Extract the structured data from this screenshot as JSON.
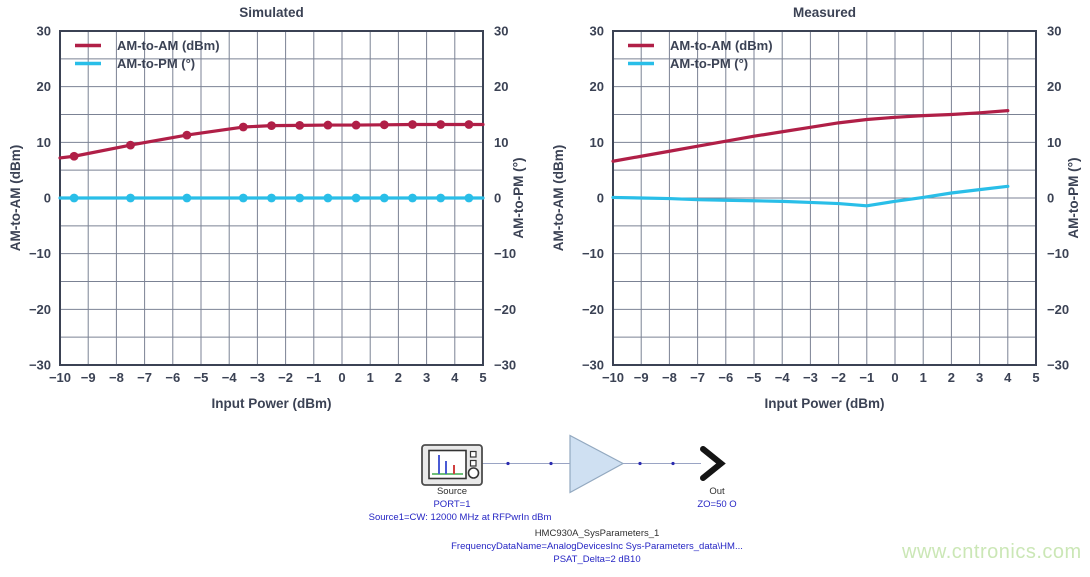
{
  "style": {
    "frame_color": "#3b4254",
    "grid_color": "#7b8294",
    "tick_color": "#3b4254",
    "am_am_color": "#b01f47",
    "am_pm_color": "#29bee8",
    "schematic_blue": "#2525c4",
    "schematic_black": "#2f2f2f",
    "amp_fill": "#cfe0f2",
    "watermark_color": "#cbe7b6"
  },
  "chart_data": [
    {
      "type": "line",
      "title": "Simulated",
      "xlabel": "Input Power (dBm)",
      "ylabel_left": "AM-to-AM (dBm)",
      "ylabel_right": "AM-to-PM (°)",
      "xlim": [
        -10,
        5
      ],
      "ylim": [
        -30,
        30
      ],
      "x_ticks": [
        -10,
        -9,
        -8,
        -7,
        -6,
        -5,
        -4,
        -3,
        -2,
        -1,
        0,
        1,
        2,
        3,
        4,
        5
      ],
      "y_ticks": [
        -30,
        -20,
        -10,
        0,
        10,
        20,
        30
      ],
      "y_grid_step": 5,
      "grid": true,
      "legend_position": "top-left",
      "legend": [
        {
          "label": "AM-to-AM (dBm)",
          "color": "#b01f47"
        },
        {
          "label": "AM-to-PM (°)",
          "color": "#29bee8"
        }
      ],
      "series": [
        {
          "name": "AM-to-AM (dBm)",
          "color": "#b01f47",
          "x": [
            -10,
            -9.5,
            -7.5,
            -5.5,
            -3.5,
            -2.5,
            -1.5,
            -0.5,
            0.5,
            1.5,
            2.5,
            3.5,
            4.5,
            5
          ],
          "y": [
            7.2,
            7.5,
            9.5,
            11.3,
            12.75,
            13.0,
            13.05,
            13.1,
            13.1,
            13.15,
            13.2,
            13.2,
            13.2,
            13.2
          ],
          "marker_x": [
            -9.5,
            -7.5,
            -5.5,
            -3.5,
            -2.5,
            -1.5,
            -0.5,
            0.5,
            1.5,
            2.5,
            3.5,
            4.5
          ],
          "marker_y": [
            7.5,
            9.5,
            11.3,
            12.75,
            13.0,
            13.05,
            13.1,
            13.1,
            13.15,
            13.2,
            13.2,
            13.2
          ]
        },
        {
          "name": "AM-to-PM (°)",
          "color": "#29bee8",
          "x": [
            -10,
            5
          ],
          "y": [
            0,
            0
          ],
          "marker_x": [
            -9.5,
            -7.5,
            -5.5,
            -3.5,
            -2.5,
            -1.5,
            -0.5,
            0.5,
            1.5,
            2.5,
            3.5,
            4.5
          ],
          "marker_y": [
            0,
            0,
            0,
            0,
            0,
            0,
            0,
            0,
            0,
            0,
            0,
            0
          ]
        }
      ]
    },
    {
      "type": "line",
      "title": "Measured",
      "xlabel": "Input Power (dBm)",
      "ylabel_left": "AM-to-AM (dBm)",
      "ylabel_right": "AM-to-PM (°)",
      "xlim": [
        -10,
        5
      ],
      "ylim": [
        -30,
        30
      ],
      "x_ticks": [
        -10,
        -9,
        -8,
        -7,
        -6,
        -5,
        -4,
        -3,
        -2,
        -1,
        0,
        1,
        2,
        3,
        4,
        5
      ],
      "y_ticks": [
        -30,
        -20,
        -10,
        0,
        10,
        20,
        30
      ],
      "y_grid_step": 5,
      "grid": true,
      "legend_position": "top-left",
      "legend": [
        {
          "label": "AM-to-AM (dBm)",
          "color": "#b01f47"
        },
        {
          "label": "AM-to-PM (°)",
          "color": "#29bee8"
        }
      ],
      "series": [
        {
          "name": "AM-to-AM (dBm)",
          "color": "#b01f47",
          "x": [
            -10,
            -9,
            -8,
            -7,
            -6,
            -5,
            -4,
            -3,
            -2,
            -1,
            0,
            1,
            2,
            3,
            4
          ],
          "y": [
            6.6,
            7.5,
            8.4,
            9.3,
            10.2,
            11.1,
            11.9,
            12.7,
            13.5,
            14.1,
            14.5,
            14.8,
            15.0,
            15.3,
            15.7
          ],
          "marker_x": [],
          "marker_y": []
        },
        {
          "name": "AM-to-PM (°)",
          "color": "#29bee8",
          "x": [
            -10,
            -9,
            -8,
            -7,
            -6,
            -5,
            -4,
            -3,
            -2,
            -1,
            0,
            1,
            2,
            3,
            4
          ],
          "y": [
            0.1,
            0.0,
            -0.1,
            -0.3,
            -0.4,
            -0.5,
            -0.6,
            -0.8,
            -1.0,
            -1.4,
            -0.6,
            0.1,
            0.9,
            1.5,
            2.1
          ],
          "marker_x": [],
          "marker_y": []
        }
      ]
    }
  ],
  "diagram": {
    "source_label": "Source",
    "port_label": "PORT=1",
    "source_param": "Source1=CW: 12000 MHz at RFPwrIn dBm",
    "out_label": "Out",
    "zo_label": "ZO=50 O",
    "amp_name": "HMC930A_SysParameters_1",
    "amp_param1": "FrequencyDataName=AnalogDevicesInc Sys-Parameters_data\\HM...",
    "amp_param2": "PSAT_Delta=2 dB10"
  },
  "watermark": {
    "text": "www.cntronics.com"
  }
}
